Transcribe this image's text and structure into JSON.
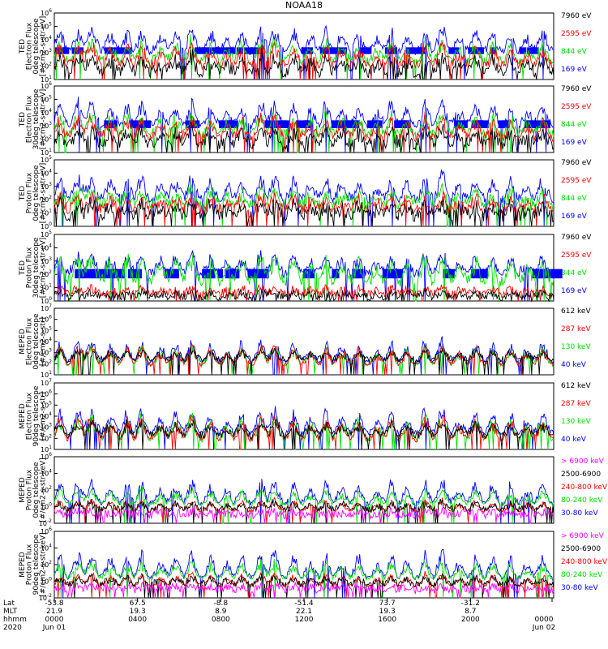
{
  "title": "NOAA18",
  "colors": {
    "black": "#000000",
    "red": "#ff0000",
    "green": "#00e000",
    "blue": "#0000ff",
    "magenta": "#ff00ff"
  },
  "chart_data": {
    "type": "line",
    "title": "NOAA18",
    "panels": [
      {
        "ylabel": [
          "TED",
          "Electron Flux",
          "0deg telescope",
          "[#/cm2-s-str-eV]"
        ],
        "yticks": [
          "10^1",
          "10^2",
          "10^3",
          "10^4",
          "10^5",
          "10^6"
        ],
        "ylim_exp": [
          0,
          6
        ],
        "legend": [
          {
            "text": "7960 eV",
            "color": "#000000"
          },
          {
            "text": "2595 eV",
            "color": "#ff0000"
          },
          {
            "text": "844 eV",
            "color": "#00e000"
          },
          {
            "text": "169 eV",
            "color": "#0000ff"
          }
        ],
        "series": [
          {
            "name": "169 eV",
            "color": "#0000ff",
            "base": 2.5,
            "amp": 2.2,
            "noise": 0.35,
            "band": [
              2.3,
              2.9
            ]
          },
          {
            "name": "844 eV",
            "color": "#00e000",
            "base": 1.6,
            "amp": 2.0,
            "noise": 0.4
          },
          {
            "name": "2595 eV",
            "color": "#ff0000",
            "base": 1.2,
            "amp": 2.0,
            "noise": 0.4
          },
          {
            "name": "7960 eV",
            "color": "#000000",
            "base": 0.6,
            "amp": 1.6,
            "noise": 0.5
          }
        ]
      },
      {
        "ylabel": [
          "TED",
          "Electron Flux",
          "30deg telescope",
          "[#/cm2-s-str-eV]"
        ],
        "yticks": [
          "10^1",
          "10^2",
          "10^3",
          "10^4",
          "10^5",
          "10^6"
        ],
        "ylim_exp": [
          0,
          6
        ],
        "legend": [
          {
            "text": "7960 eV",
            "color": "#000000"
          },
          {
            "text": "2595 eV",
            "color": "#ff0000"
          },
          {
            "text": "844 eV",
            "color": "#00e000"
          },
          {
            "text": "169 eV",
            "color": "#0000ff"
          }
        ],
        "series": [
          {
            "name": "169 eV",
            "color": "#0000ff",
            "base": 2.4,
            "amp": 2.3,
            "noise": 0.35,
            "band": [
              2.2,
              2.9
            ]
          },
          {
            "name": "844 eV",
            "color": "#00e000",
            "base": 1.6,
            "amp": 2.0,
            "noise": 0.4
          },
          {
            "name": "2595 eV",
            "color": "#ff0000",
            "base": 1.3,
            "amp": 2.0,
            "noise": 0.4
          },
          {
            "name": "7960 eV",
            "color": "#000000",
            "base": 0.7,
            "amp": 1.6,
            "noise": 0.5
          }
        ]
      },
      {
        "ylabel": [
          "TED",
          "Proton Flux",
          "0deg telescope",
          "[#/cm2-s-str-eV]"
        ],
        "yticks": [
          "10^0",
          "10^1",
          "10^2",
          "10^3",
          "10^4",
          "10^5"
        ],
        "ylim_exp": [
          0,
          5
        ],
        "legend": [
          {
            "text": "7960 eV",
            "color": "#000000"
          },
          {
            "text": "2595 eV",
            "color": "#ff0000"
          },
          {
            "text": "844 eV",
            "color": "#00e000"
          },
          {
            "text": "169 eV",
            "color": "#0000ff"
          }
        ],
        "series": [
          {
            "name": "169 eV",
            "color": "#0000ff",
            "base": 2.0,
            "amp": 1.8,
            "noise": 0.35
          },
          {
            "name": "844 eV",
            "color": "#00e000",
            "base": 1.6,
            "amp": 1.3,
            "noise": 0.45
          },
          {
            "name": "2595 eV",
            "color": "#ff0000",
            "base": 1.2,
            "amp": 1.2,
            "noise": 0.4
          },
          {
            "name": "7960 eV",
            "color": "#000000",
            "base": 0.8,
            "amp": 1.0,
            "noise": 0.5
          }
        ]
      },
      {
        "ylabel": [
          "TED",
          "Proton Flux",
          "30deg telescope",
          "[#/cm2-s-str-eV]"
        ],
        "yticks": [
          "10^0",
          "10^1",
          "10^2",
          "10^3",
          "10^4",
          "10^5"
        ],
        "ylim_exp": [
          0,
          5
        ],
        "legend": [
          {
            "text": "7960 eV",
            "color": "#000000"
          },
          {
            "text": "2595 eV",
            "color": "#ff0000"
          },
          {
            "text": "844 eV",
            "color": "#00e000"
          },
          {
            "text": "169 eV",
            "color": "#0000ff"
          }
        ],
        "series": [
          {
            "name": "169 eV",
            "color": "#0000ff",
            "base": 2.0,
            "amp": 1.7,
            "noise": 0.35,
            "band": [
              1.7,
              2.4
            ]
          },
          {
            "name": "844 eV",
            "color": "#00e000",
            "base": 1.4,
            "amp": 2.1,
            "noise": 0.45
          },
          {
            "name": "2595 eV",
            "color": "#ff0000",
            "base": 0.5,
            "amp": 0.6,
            "noise": 0.3
          },
          {
            "name": "7960 eV",
            "color": "#000000",
            "base": 0.3,
            "amp": 0.4,
            "noise": 0.3
          }
        ]
      },
      {
        "ylabel": [
          "MEPED",
          "Electron Flux",
          "0deg telescope",
          "[#/cm2-s-str]"
        ],
        "yticks": [
          "10^1",
          "10^2",
          "10^3",
          "10^4",
          "10^5",
          "10^6",
          "10^7"
        ],
        "ylim_exp": [
          0,
          7
        ],
        "legend": [
          {
            "text": "612 keV",
            "color": "#000000"
          },
          {
            "text": "287 keV",
            "color": "#ff0000"
          },
          {
            "text": "130 keV",
            "color": "#00e000"
          },
          {
            "text": "40 keV",
            "color": "#0000ff"
          }
        ],
        "series": [
          {
            "name": "40 keV",
            "color": "#0000ff",
            "base": 1.3,
            "amp": 2.4,
            "noise": 0.25
          },
          {
            "name": "130 keV",
            "color": "#00e000",
            "base": 1.0,
            "amp": 2.2,
            "noise": 0.2
          },
          {
            "name": "287 keV",
            "color": "#ff0000",
            "base": 1.0,
            "amp": 2.2,
            "noise": 0.2
          },
          {
            "name": "612 keV",
            "color": "#000000",
            "base": 1.6,
            "amp": 1.0,
            "noise": 0.35
          }
        ]
      },
      {
        "ylabel": [
          "MEPED",
          "Electron Flux",
          "90deg telescope",
          "[#/cm2-s-str]"
        ],
        "yticks": [
          "10^1",
          "10^2",
          "10^3",
          "10^4",
          "10^5",
          "10^6",
          "10^7"
        ],
        "ylim_exp": [
          0,
          7
        ],
        "legend": [
          {
            "text": "612 keV",
            "color": "#000000"
          },
          {
            "text": "287 keV",
            "color": "#ff0000"
          },
          {
            "text": "130 keV",
            "color": "#00e000"
          },
          {
            "text": "40 keV",
            "color": "#0000ff"
          }
        ],
        "series": [
          {
            "name": "40 keV",
            "color": "#0000ff",
            "base": 1.6,
            "amp": 2.8,
            "noise": 0.3
          },
          {
            "name": "130 keV",
            "color": "#00e000",
            "base": 1.0,
            "amp": 2.6,
            "noise": 0.3
          },
          {
            "name": "287 keV",
            "color": "#ff0000",
            "base": 1.0,
            "amp": 2.5,
            "noise": 0.3
          },
          {
            "name": "612 keV",
            "color": "#000000",
            "base": 1.4,
            "amp": 1.6,
            "noise": 0.4
          }
        ]
      },
      {
        "ylabel": [
          "MEPED",
          "Proton Flux",
          "0deg telescope",
          "[#/cm2-s-str-keV]"
        ],
        "yticks": [
          "10^-2",
          "10^0",
          "10^2",
          "10^4",
          "10^6"
        ],
        "ylim_exp": [
          -2,
          6
        ],
        "legend": [
          {
            "text": "> 6900 keV",
            "color": "#ff00ff"
          },
          {
            "text": "2500-6900",
            "color": "#000000"
          },
          {
            "text": "240-800 keV",
            "color": "#ff0000"
          },
          {
            "text": "80-240 keV",
            "color": "#00e000"
          },
          {
            "text": "30-80 keV",
            "color": "#0000ff"
          }
        ],
        "series": [
          {
            "name": "30-80 keV",
            "color": "#0000ff",
            "base": 0.3,
            "amp": 3.0,
            "noise": 0.3
          },
          {
            "name": "80-240 keV",
            "color": "#00e000",
            "base": 0.2,
            "amp": 2.0,
            "noise": 0.25
          },
          {
            "name": "240-800 keV",
            "color": "#ff0000",
            "base": -0.6,
            "amp": 1.5,
            "noise": 0.2
          },
          {
            "name": "2500-6900",
            "color": "#000000",
            "base": -0.4,
            "amp": 1.0,
            "noise": 0.4
          },
          {
            "name": "> 6900 keV",
            "color": "#ff00ff",
            "base": -1.0,
            "amp": 0.5,
            "noise": 0.5
          }
        ]
      },
      {
        "ylabel": [
          "MEPED",
          "Proton Flux",
          "90deg telescope",
          "[#/cm2-s-str-keV]"
        ],
        "yticks": [
          "10^-2",
          "10^0",
          "10^2",
          "10^4",
          "10^6"
        ],
        "ylim_exp": [
          -2,
          6
        ],
        "legend": [
          {
            "text": "> 6900 keV",
            "color": "#ff00ff"
          },
          {
            "text": "2500-6900",
            "color": "#000000"
          },
          {
            "text": "240-800 keV",
            "color": "#ff0000"
          },
          {
            "text": "80-240 keV",
            "color": "#00e000"
          },
          {
            "text": "30-80 keV",
            "color": "#0000ff"
          }
        ],
        "series": [
          {
            "name": "30-80 keV",
            "color": "#0000ff",
            "base": 0.3,
            "amp": 3.4,
            "noise": 0.3
          },
          {
            "name": "80-240 keV",
            "color": "#00e000",
            "base": 0.3,
            "amp": 2.2,
            "noise": 0.25
          },
          {
            "name": "240-800 keV",
            "color": "#ff0000",
            "base": -0.6,
            "amp": 1.6,
            "noise": 0.2
          },
          {
            "name": "2500-6900",
            "color": "#000000",
            "base": -0.4,
            "amp": 1.0,
            "noise": 0.4
          },
          {
            "name": "> 6900 keV",
            "color": "#ff00ff",
            "base": -1.0,
            "amp": 0.5,
            "noise": 0.5
          }
        ]
      }
    ],
    "x_axis": {
      "row_labels": [
        "Lat",
        "MLT",
        "hhmm",
        "2020"
      ],
      "ticks": [
        {
          "lat": "-53.8",
          "mlt": "21.9",
          "hhmm": "0000",
          "date": "Jun 01"
        },
        {
          "lat": "67.5",
          "mlt": "19.3",
          "hhmm": "0400",
          "date": ""
        },
        {
          "lat": "-8.8",
          "mlt": "8.9",
          "hhmm": "0800",
          "date": ""
        },
        {
          "lat": "-51.4",
          "mlt": "22.1",
          "hhmm": "1200",
          "date": ""
        },
        {
          "lat": "73.7",
          "mlt": "19.3",
          "hhmm": "1600",
          "date": ""
        },
        {
          "lat": "-31.2",
          "mlt": "8.7",
          "hhmm": "2000",
          "date": ""
        },
        {
          "lat": "",
          "mlt": "",
          "hhmm": "0000",
          "date": "Jun 02"
        }
      ]
    }
  }
}
